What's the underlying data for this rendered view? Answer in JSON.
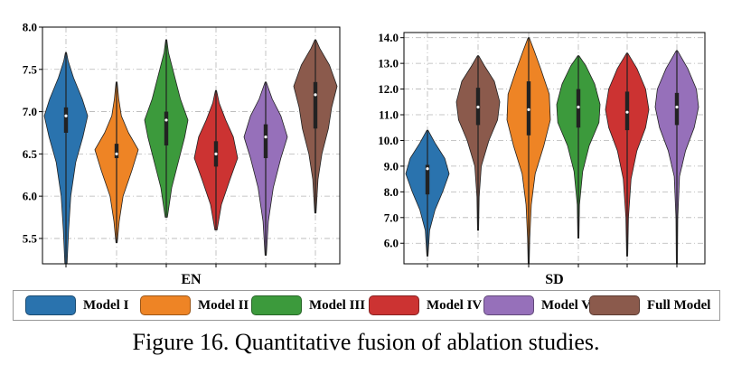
{
  "colors": {
    "Model I": "#2a73ae",
    "Model II": "#ee8425",
    "Model III": "#3c9a3c",
    "Model IV": "#cc3332",
    "Model VI": "#9670ba",
    "Full Model": "#8b5a4c"
  },
  "legend": {
    "items": [
      "Model I",
      "Model II",
      "Model III",
      "Model IV",
      "Model VI",
      "Full Model"
    ]
  },
  "caption": "Figure 16. Quantitative fusion of ablation studies.",
  "chart_data": [
    {
      "type": "violin",
      "title": "",
      "xlabel": "EN",
      "ylabel": "",
      "ylim": [
        5.2,
        8.0
      ],
      "yticks": [
        "5.5",
        "6.0",
        "6.5",
        "7.0",
        "7.5",
        "8.0"
      ],
      "grid": true,
      "series": [
        {
          "name": "Model I",
          "min": 5.2,
          "max": 7.7,
          "q1": 6.75,
          "median": 6.95,
          "q3": 7.05,
          "density": [
            [
              5.2,
              0.05
            ],
            [
              5.6,
              0.12
            ],
            [
              6.0,
              0.22
            ],
            [
              6.4,
              0.45
            ],
            [
              6.7,
              0.78
            ],
            [
              6.95,
              1.0
            ],
            [
              7.15,
              0.75
            ],
            [
              7.4,
              0.35
            ],
            [
              7.6,
              0.1
            ],
            [
              7.7,
              0.0
            ]
          ]
        },
        {
          "name": "Model II",
          "min": 5.45,
          "max": 7.35,
          "q1": 6.45,
          "median": 6.5,
          "q3": 6.62,
          "density": [
            [
              5.45,
              0.03
            ],
            [
              5.7,
              0.12
            ],
            [
              6.0,
              0.3
            ],
            [
              6.3,
              0.7
            ],
            [
              6.55,
              1.0
            ],
            [
              6.75,
              0.55
            ],
            [
              6.95,
              0.22
            ],
            [
              7.15,
              0.1
            ],
            [
              7.35,
              0.0
            ]
          ]
        },
        {
          "name": "Model III",
          "min": 5.75,
          "max": 7.85,
          "q1": 6.6,
          "median": 6.9,
          "q3": 7.0,
          "density": [
            [
              5.75,
              0.05
            ],
            [
              6.1,
              0.25
            ],
            [
              6.4,
              0.55
            ],
            [
              6.7,
              0.85
            ],
            [
              6.9,
              1.0
            ],
            [
              7.15,
              0.65
            ],
            [
              7.45,
              0.35
            ],
            [
              7.7,
              0.1
            ],
            [
              7.85,
              0.0
            ]
          ]
        },
        {
          "name": "Model IV",
          "min": 5.6,
          "max": 7.25,
          "q1": 6.35,
          "median": 6.5,
          "q3": 6.65,
          "density": [
            [
              5.6,
              0.05
            ],
            [
              5.9,
              0.25
            ],
            [
              6.2,
              0.65
            ],
            [
              6.45,
              1.0
            ],
            [
              6.7,
              0.8
            ],
            [
              6.9,
              0.45
            ],
            [
              7.1,
              0.15
            ],
            [
              7.25,
              0.0
            ]
          ]
        },
        {
          "name": "Model VI",
          "min": 5.3,
          "max": 7.35,
          "q1": 6.45,
          "median": 6.7,
          "q3": 6.85,
          "density": [
            [
              5.3,
              0.03
            ],
            [
              5.7,
              0.12
            ],
            [
              6.1,
              0.35
            ],
            [
              6.45,
              0.7
            ],
            [
              6.7,
              1.0
            ],
            [
              6.95,
              0.7
            ],
            [
              7.15,
              0.3
            ],
            [
              7.35,
              0.0
            ]
          ]
        },
        {
          "name": "Full Model",
          "min": 5.8,
          "max": 7.85,
          "q1": 6.8,
          "median": 7.2,
          "q3": 7.35,
          "density": [
            [
              5.8,
              0.03
            ],
            [
              6.2,
              0.12
            ],
            [
              6.5,
              0.3
            ],
            [
              6.8,
              0.6
            ],
            [
              7.05,
              0.75
            ],
            [
              7.3,
              1.0
            ],
            [
              7.55,
              0.65
            ],
            [
              7.75,
              0.2
            ],
            [
              7.85,
              0.0
            ]
          ]
        }
      ]
    },
    {
      "type": "violin",
      "title": "",
      "xlabel": "SD",
      "ylabel": "",
      "ylim": [
        5.2,
        14.2
      ],
      "yticks": [
        "6.0",
        "7.0",
        "8.0",
        "9.0",
        "10.0",
        "11.0",
        "12.0",
        "13.0",
        "14.0"
      ],
      "grid": true,
      "series": [
        {
          "name": "Model I",
          "min": 5.5,
          "max": 10.4,
          "q1": 7.9,
          "median": 8.9,
          "q3": 9.05,
          "density": [
            [
              5.5,
              0.02
            ],
            [
              6.5,
              0.1
            ],
            [
              7.3,
              0.35
            ],
            [
              8.0,
              0.7
            ],
            [
              8.7,
              1.0
            ],
            [
              9.3,
              0.8
            ],
            [
              9.9,
              0.35
            ],
            [
              10.4,
              0.0
            ]
          ]
        },
        {
          "name": "Full Model",
          "min": 6.5,
          "max": 13.3,
          "q1": 10.6,
          "median": 11.3,
          "q3": 12.05,
          "density": [
            [
              6.5,
              0.02
            ],
            [
              7.8,
              0.05
            ],
            [
              9.0,
              0.15
            ],
            [
              10.0,
              0.5
            ],
            [
              10.8,
              0.9
            ],
            [
              11.5,
              1.0
            ],
            [
              12.3,
              0.75
            ],
            [
              12.9,
              0.3
            ],
            [
              13.3,
              0.0
            ]
          ]
        },
        {
          "name": "Model II",
          "min": 5.2,
          "max": 14.0,
          "q1": 10.2,
          "median": 11.2,
          "q3": 12.3,
          "density": [
            [
              5.2,
              0.02
            ],
            [
              6.2,
              0.05
            ],
            [
              7.5,
              0.12
            ],
            [
              8.7,
              0.3
            ],
            [
              9.8,
              0.7
            ],
            [
              10.8,
              1.0
            ],
            [
              11.8,
              0.95
            ],
            [
              12.8,
              0.55
            ],
            [
              13.5,
              0.25
            ],
            [
              14.0,
              0.0
            ]
          ]
        },
        {
          "name": "Model III",
          "min": 6.2,
          "max": 13.3,
          "q1": 10.5,
          "median": 11.3,
          "q3": 12.0,
          "density": [
            [
              6.2,
              0.02
            ],
            [
              7.5,
              0.05
            ],
            [
              8.8,
              0.2
            ],
            [
              9.8,
              0.5
            ],
            [
              10.7,
              0.95
            ],
            [
              11.4,
              1.0
            ],
            [
              12.2,
              0.75
            ],
            [
              12.9,
              0.35
            ],
            [
              13.3,
              0.0
            ]
          ]
        },
        {
          "name": "Model IV",
          "min": 5.5,
          "max": 13.4,
          "q1": 10.4,
          "median": 11.1,
          "q3": 11.9,
          "density": [
            [
              5.5,
              0.02
            ],
            [
              7.0,
              0.06
            ],
            [
              8.5,
              0.18
            ],
            [
              9.6,
              0.45
            ],
            [
              10.5,
              0.85
            ],
            [
              11.2,
              1.0
            ],
            [
              12.0,
              0.85
            ],
            [
              12.8,
              0.45
            ],
            [
              13.4,
              0.0
            ]
          ]
        },
        {
          "name": "Model VI",
          "min": 5.2,
          "max": 13.5,
          "q1": 10.6,
          "median": 11.3,
          "q3": 11.85,
          "density": [
            [
              5.2,
              0.02
            ],
            [
              7.0,
              0.04
            ],
            [
              8.6,
              0.12
            ],
            [
              9.6,
              0.4
            ],
            [
              10.5,
              0.8
            ],
            [
              11.3,
              1.0
            ],
            [
              12.0,
              0.9
            ],
            [
              12.8,
              0.5
            ],
            [
              13.5,
              0.0
            ]
          ]
        }
      ]
    }
  ]
}
